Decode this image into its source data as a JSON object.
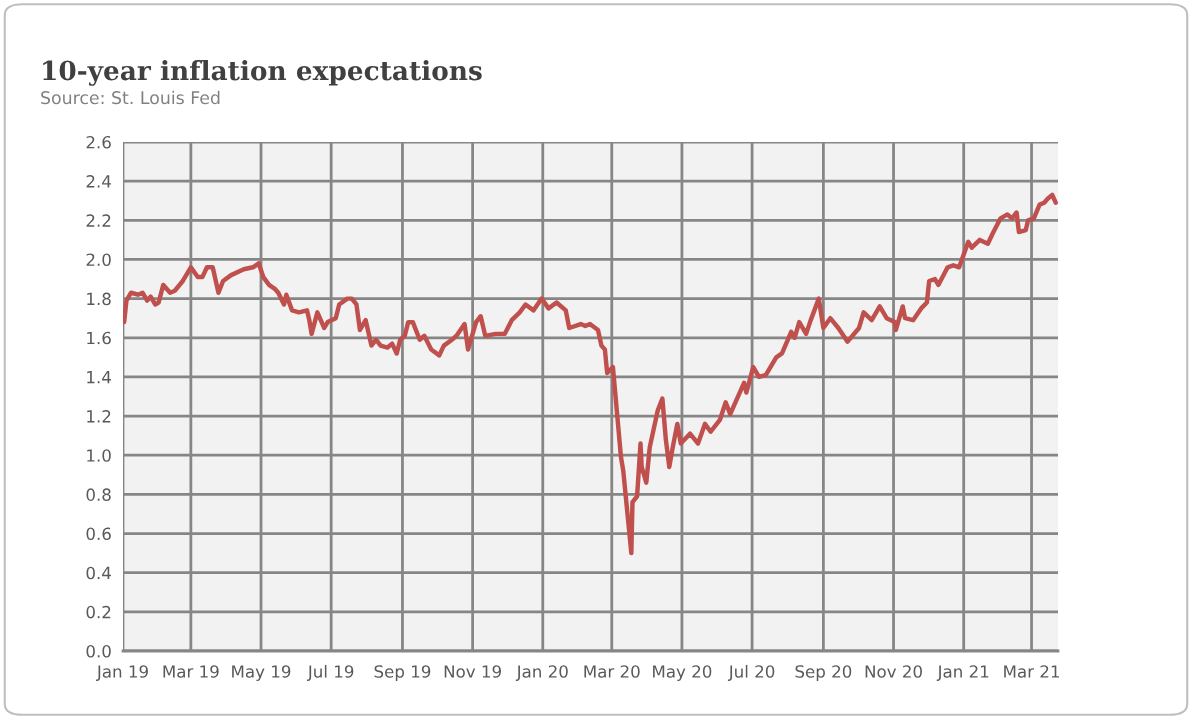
{
  "chart_data": {
    "type": "line",
    "title": "10-year inflation expectations",
    "subtitle": "Source: St. Louis Fed",
    "x": [
      "2019-01-02",
      "2019-01-04",
      "2019-01-08",
      "2019-01-14",
      "2019-01-18",
      "2019-01-22",
      "2019-01-25",
      "2019-01-29",
      "2019-02-01",
      "2019-02-05",
      "2019-02-11",
      "2019-02-15",
      "2019-02-22",
      "2019-03-01",
      "2019-03-07",
      "2019-03-11",
      "2019-03-15",
      "2019-03-20",
      "2019-03-25",
      "2019-03-29",
      "2019-04-05",
      "2019-04-16",
      "2019-04-24",
      "2019-04-29",
      "2019-05-03",
      "2019-05-08",
      "2019-05-13",
      "2019-05-16",
      "2019-05-21",
      "2019-05-23",
      "2019-05-28",
      "2019-06-03",
      "2019-06-10",
      "2019-06-12",
      "2019-06-14",
      "2019-06-19",
      "2019-06-25",
      "2019-06-28",
      "2019-07-05",
      "2019-07-08",
      "2019-07-15",
      "2019-07-19",
      "2019-07-23",
      "2019-07-26",
      "2019-07-31",
      "2019-08-05",
      "2019-08-09",
      "2019-08-13",
      "2019-08-19",
      "2019-08-23",
      "2019-08-27",
      "2019-08-30",
      "2019-09-03",
      "2019-09-06",
      "2019-09-10",
      "2019-09-16",
      "2019-09-20",
      "2019-09-26",
      "2019-10-03",
      "2019-10-07",
      "2019-10-14",
      "2019-10-18",
      "2019-10-25",
      "2019-10-28",
      "2019-11-04",
      "2019-11-08",
      "2019-11-12",
      "2019-11-21",
      "2019-11-29",
      "2019-12-05",
      "2019-12-12",
      "2019-12-17",
      "2019-12-24",
      "2019-12-31",
      "2020-01-06",
      "2020-01-13",
      "2020-01-21",
      "2020-01-24",
      "2020-02-03",
      "2020-02-07",
      "2020-02-11",
      "2020-02-18",
      "2020-02-21",
      "2020-02-24",
      "2020-02-26",
      "2020-03-02",
      "2020-03-09",
      "2020-03-11",
      "2020-03-16",
      "2020-03-18",
      "2020-03-19",
      "2020-03-23",
      "2020-03-26",
      "2020-03-27",
      "2020-03-31",
      "2020-04-03",
      "2020-04-10",
      "2020-04-14",
      "2020-04-17",
      "2020-04-20",
      "2020-04-23",
      "2020-04-27",
      "2020-04-30",
      "2020-05-08",
      "2020-05-15",
      "2020-05-21",
      "2020-05-26",
      "2020-06-03",
      "2020-06-08",
      "2020-06-12",
      "2020-06-24",
      "2020-06-26",
      "2020-07-02",
      "2020-07-07",
      "2020-07-13",
      "2020-07-22",
      "2020-07-27",
      "2020-08-04",
      "2020-08-07",
      "2020-08-11",
      "2020-08-17",
      "2020-08-21",
      "2020-08-28",
      "2020-09-01",
      "2020-09-07",
      "2020-09-14",
      "2020-09-22",
      "2020-10-02",
      "2020-10-06",
      "2020-10-13",
      "2020-10-20",
      "2020-10-26",
      "2020-11-02",
      "2020-11-03",
      "2020-11-09",
      "2020-11-11",
      "2020-11-18",
      "2020-11-25",
      "2020-11-30",
      "2020-12-02",
      "2020-12-07",
      "2020-12-10",
      "2020-12-18",
      "2020-12-23",
      "2020-12-28",
      "2021-01-05",
      "2021-01-08",
      "2021-01-15",
      "2021-01-22",
      "2021-01-26",
      "2021-02-02",
      "2021-02-08",
      "2021-02-12",
      "2021-02-16",
      "2021-02-18",
      "2021-02-24",
      "2021-02-26",
      "2021-03-03",
      "2021-03-08",
      "2021-03-12",
      "2021-03-15",
      "2021-03-19",
      "2021-03-22"
    ],
    "series": [
      {
        "color": "#c0504d",
        "values": [
          1.68,
          1.79,
          1.83,
          1.82,
          1.83,
          1.79,
          1.81,
          1.77,
          1.78,
          1.87,
          1.83,
          1.84,
          1.89,
          1.96,
          1.91,
          1.91,
          1.96,
          1.96,
          1.83,
          1.89,
          1.92,
          1.95,
          1.96,
          1.98,
          1.91,
          1.87,
          1.85,
          1.83,
          1.77,
          1.82,
          1.74,
          1.73,
          1.74,
          1.69,
          1.62,
          1.73,
          1.65,
          1.68,
          1.7,
          1.77,
          1.8,
          1.8,
          1.77,
          1.64,
          1.69,
          1.56,
          1.59,
          1.56,
          1.55,
          1.57,
          1.52,
          1.59,
          1.61,
          1.68,
          1.68,
          1.59,
          1.61,
          1.54,
          1.51,
          1.56,
          1.59,
          1.61,
          1.67,
          1.54,
          1.68,
          1.71,
          1.61,
          1.62,
          1.62,
          1.69,
          1.73,
          1.77,
          1.74,
          1.8,
          1.75,
          1.78,
          1.74,
          1.65,
          1.67,
          1.66,
          1.67,
          1.64,
          1.56,
          1.54,
          1.42,
          1.45,
          0.99,
          0.92,
          0.62,
          0.5,
          0.76,
          0.79,
          1.06,
          0.94,
          0.86,
          1.04,
          1.23,
          1.29,
          1.08,
          0.94,
          1.04,
          1.16,
          1.06,
          1.11,
          1.06,
          1.16,
          1.12,
          1.18,
          1.27,
          1.21,
          1.37,
          1.32,
          1.45,
          1.4,
          1.41,
          1.5,
          1.52,
          1.63,
          1.6,
          1.68,
          1.62,
          1.69,
          1.8,
          1.65,
          1.7,
          1.65,
          1.58,
          1.65,
          1.73,
          1.69,
          1.76,
          1.7,
          1.68,
          1.64,
          1.76,
          1.7,
          1.69,
          1.75,
          1.78,
          1.89,
          1.9,
          1.87,
          1.96,
          1.97,
          1.96,
          2.09,
          2.06,
          2.1,
          2.08,
          2.13,
          2.21,
          2.23,
          2.21,
          2.24,
          2.14,
          2.15,
          2.2,
          2.21,
          2.28,
          2.29,
          2.31,
          2.33,
          2.29
        ]
      }
    ],
    "xlim": [
      "2019-01-01",
      "2021-03-24"
    ],
    "xticks": [
      {
        "value": "2019-01-01",
        "label": "Jan 19"
      },
      {
        "value": "2019-03-01",
        "label": "Mar 19"
      },
      {
        "value": "2019-05-01",
        "label": "May 19"
      },
      {
        "value": "2019-07-01",
        "label": "Jul 19"
      },
      {
        "value": "2019-09-01",
        "label": "Sep 19"
      },
      {
        "value": "2019-11-01",
        "label": "Nov 19"
      },
      {
        "value": "2020-01-01",
        "label": "Jan 20"
      },
      {
        "value": "2020-03-01",
        "label": "Mar 20"
      },
      {
        "value": "2020-05-01",
        "label": "May 20"
      },
      {
        "value": "2020-07-01",
        "label": "Jul 20"
      },
      {
        "value": "2020-09-01",
        "label": "Sep 20"
      },
      {
        "value": "2020-11-01",
        "label": "Nov 20"
      },
      {
        "value": "2021-01-01",
        "label": "Jan 21"
      },
      {
        "value": "2021-03-01",
        "label": "Mar 21"
      }
    ],
    "ylim": [
      0,
      2.6
    ],
    "yticks": [
      {
        "value": 0,
        "label": "0.0"
      },
      {
        "value": 0.2,
        "label": "0.2"
      },
      {
        "value": 0.4,
        "label": "0.4"
      },
      {
        "value": 0.6,
        "label": "0.6"
      },
      {
        "value": 0.8,
        "label": "0.8"
      },
      {
        "value": 1.0,
        "label": "1.0"
      },
      {
        "value": 1.2,
        "label": "1.2"
      },
      {
        "value": 1.4,
        "label": "1.4"
      },
      {
        "value": 1.6,
        "label": "1.6"
      },
      {
        "value": 1.8,
        "label": "1.8"
      },
      {
        "value": 2.0,
        "label": "2.0"
      },
      {
        "value": 2.2,
        "label": "2.2"
      },
      {
        "value": 2.4,
        "label": "2.4"
      },
      {
        "value": 2.6,
        "label": "2.6"
      }
    ],
    "grid": true,
    "marker": "none",
    "line_style": "solid"
  }
}
